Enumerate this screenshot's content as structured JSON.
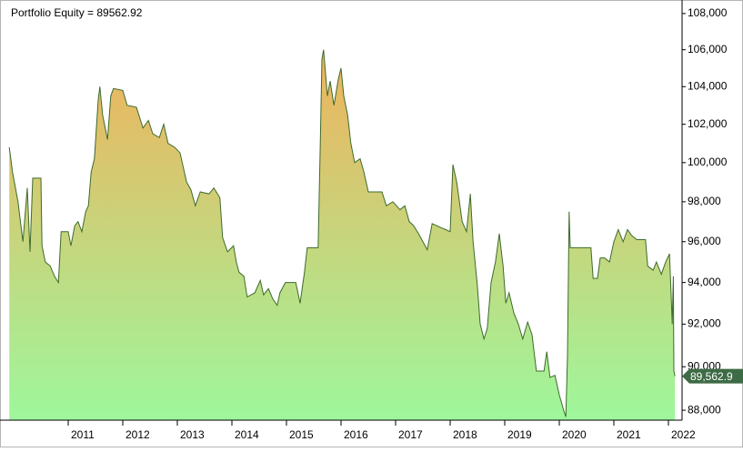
{
  "chart_data": {
    "type": "area",
    "title": "Portfolio Equity = 89562.92",
    "last_value_label": "89,562.9",
    "log_scale": true,
    "line_color": "#3d6b2c",
    "fill_top_color": "#f0b25c",
    "fill_bottom_color": "#9ef79c",
    "tag_color": "#3d6b45",
    "xlim": [
      2009.9,
      2022.15
    ],
    "xticks": [
      2011,
      2012,
      2013,
      2014,
      2015,
      2016,
      2017,
      2018,
      2019,
      2020,
      2021,
      2022
    ],
    "ylim": [
      87550,
      108350
    ],
    "yticks": [
      {
        "value": 88000,
        "label": "88,000"
      },
      {
        "value": 90000,
        "label": "90,000"
      },
      {
        "value": 92000,
        "label": "92,000"
      },
      {
        "value": 94000,
        "label": "94,000"
      },
      {
        "value": 96000,
        "label": "96,000"
      },
      {
        "value": 98000,
        "label": "98,000"
      },
      {
        "value": 100000,
        "label": "100,000"
      },
      {
        "value": 102000,
        "label": "102,000"
      },
      {
        "value": 104000,
        "label": "104,000"
      },
      {
        "value": 106000,
        "label": "106,000"
      },
      {
        "value": 108000,
        "label": "108,000"
      }
    ],
    "x": [
      2009.92,
      2009.98,
      2010.08,
      2010.17,
      2010.25,
      2010.3,
      2010.35,
      2010.5,
      2010.52,
      2010.58,
      2010.67,
      2010.75,
      2010.82,
      2010.87,
      2011.0,
      2011.05,
      2011.12,
      2011.18,
      2011.25,
      2011.32,
      2011.37,
      2011.42,
      2011.48,
      2011.55,
      2011.58,
      2011.63,
      2011.72,
      2011.78,
      2011.83,
      2012.0,
      2012.08,
      2012.25,
      2012.37,
      2012.47,
      2012.55,
      2012.67,
      2012.75,
      2012.83,
      2012.95,
      2013.05,
      2013.17,
      2013.25,
      2013.33,
      2013.42,
      2013.58,
      2013.67,
      2013.78,
      2013.83,
      2013.92,
      2014.03,
      2014.08,
      2014.13,
      2014.22,
      2014.28,
      2014.42,
      2014.52,
      2014.58,
      2014.67,
      2014.75,
      2014.83,
      2014.88,
      2014.98,
      2015.17,
      2015.25,
      2015.33,
      2015.38,
      2015.58,
      2015.62,
      2015.65,
      2015.68,
      2015.75,
      2015.8,
      2015.87,
      2015.95,
      2016.0,
      2016.05,
      2016.12,
      2016.18,
      2016.25,
      2016.35,
      2016.42,
      2016.5,
      2016.75,
      2016.83,
      2016.95,
      2017.08,
      2017.17,
      2017.25,
      2017.33,
      2017.42,
      2017.5,
      2017.58,
      2017.67,
      2017.83,
      2017.92,
      2018.0,
      2018.05,
      2018.12,
      2018.22,
      2018.3,
      2018.37,
      2018.42,
      2018.5,
      2018.55,
      2018.62,
      2018.68,
      2018.75,
      2018.83,
      2018.9,
      2018.97,
      2019.02,
      2019.08,
      2019.17,
      2019.25,
      2019.33,
      2019.42,
      2019.5,
      2019.58,
      2019.72,
      2019.77,
      2019.83,
      2019.92,
      2020.0,
      2020.08,
      2020.12,
      2020.15,
      2020.18,
      2020.2,
      2020.58,
      2020.62,
      2020.7,
      2020.75,
      2020.83,
      2020.92,
      2021.0,
      2021.08,
      2021.17,
      2021.25,
      2021.33,
      2021.42,
      2021.58,
      2021.62,
      2021.72,
      2021.78,
      2021.87,
      2021.95,
      2022.02,
      2022.07,
      2022.09,
      2022.1,
      2022.12
    ],
    "values": [
      100800,
      99500,
      98000,
      96000,
      98700,
      95500,
      99200,
      99200,
      95800,
      95000,
      94800,
      94300,
      94000,
      96500,
      96500,
      95800,
      96800,
      97000,
      96500,
      97500,
      97800,
      99500,
      100200,
      103300,
      104000,
      102500,
      101200,
      103500,
      103900,
      103800,
      103000,
      102900,
      101800,
      102200,
      101500,
      101300,
      102000,
      101000,
      100800,
      100500,
      99000,
      98600,
      97800,
      98500,
      98400,
      98700,
      98200,
      96200,
      95500,
      95800,
      95000,
      94500,
      94300,
      93300,
      93500,
      94100,
      93400,
      93700,
      93200,
      92900,
      93500,
      94000,
      94000,
      93000,
      94500,
      95700,
      95700,
      101000,
      105500,
      106000,
      103500,
      104300,
      103000,
      104400,
      105000,
      103500,
      102500,
      101000,
      100000,
      100200,
      99500,
      98500,
      98500,
      97800,
      98000,
      97600,
      97800,
      97000,
      96800,
      96400,
      96000,
      95600,
      96900,
      96700,
      96600,
      96500,
      99900,
      99000,
      97000,
      96500,
      98400,
      96000,
      93800,
      92000,
      91300,
      91800,
      94000,
      95000,
      96400,
      94800,
      93000,
      93500,
      92500,
      92000,
      91300,
      92100,
      91500,
      89800,
      89800,
      90700,
      89500,
      89600,
      88700,
      88000,
      87700,
      90500,
      97500,
      95700,
      95700,
      94200,
      94200,
      95200,
      95200,
      95000,
      96000,
      96600,
      96000,
      96600,
      96300,
      96100,
      96100,
      94800,
      94600,
      95000,
      94400,
      95000,
      95400,
      92000,
      94300,
      89800,
      89562.92
    ]
  }
}
